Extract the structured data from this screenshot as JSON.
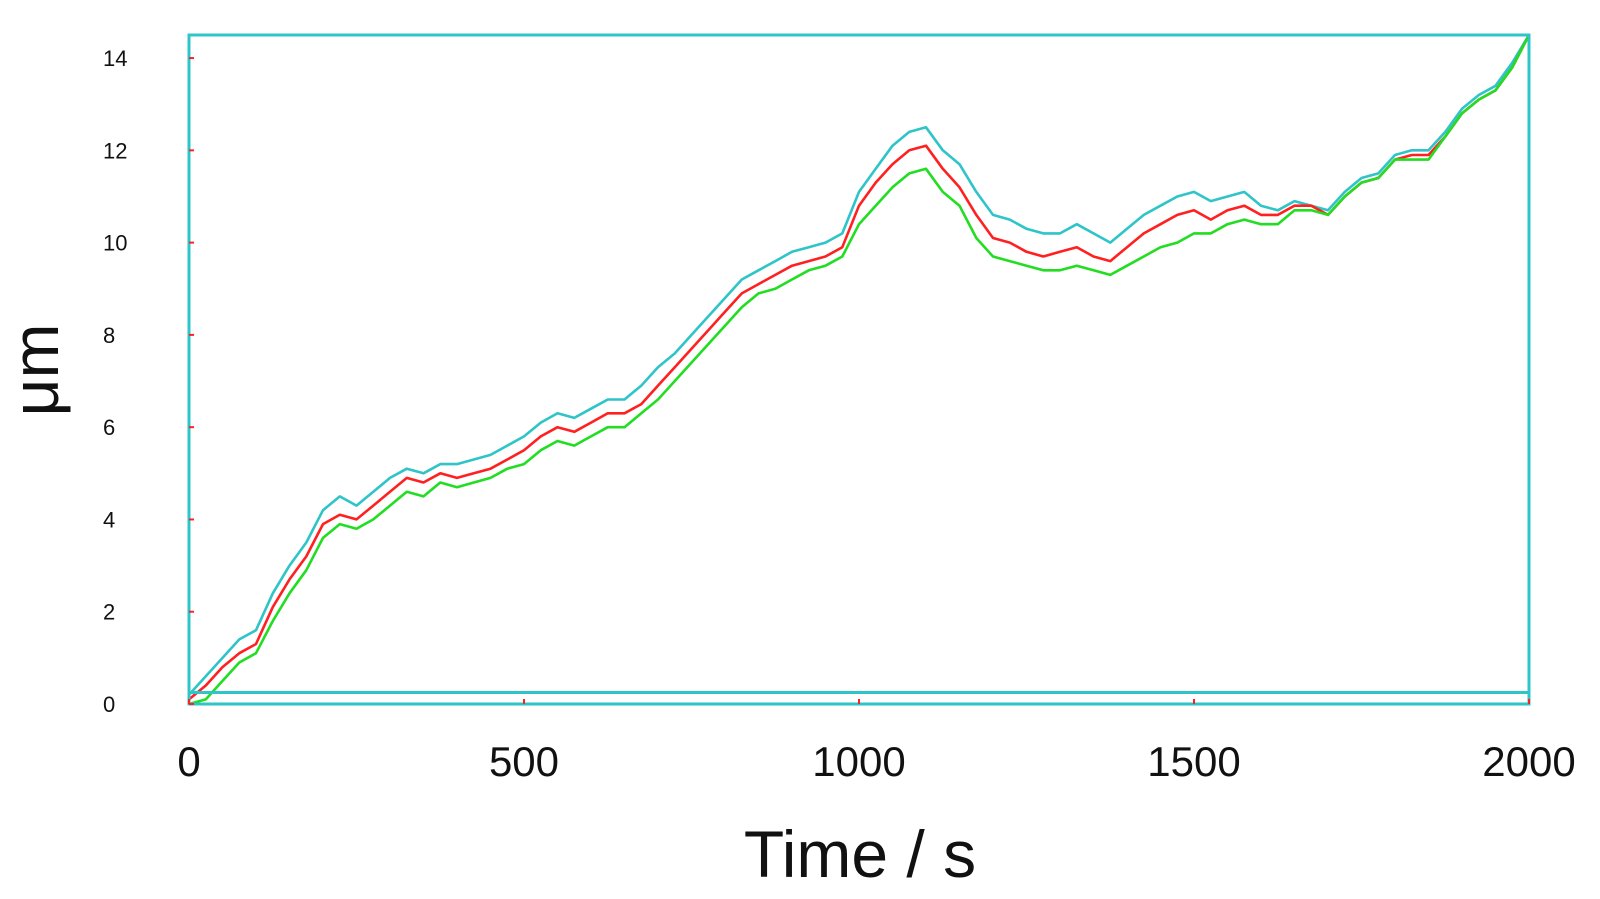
{
  "chart_data": {
    "type": "line",
    "title": "",
    "xlabel": "Time / s",
    "ylabel": "μm",
    "xlim": [
      0,
      2000
    ],
    "ylim": [
      0,
      14.5
    ],
    "xticks": [
      0,
      500,
      1000,
      1500,
      2000
    ],
    "xtick_labels": [
      "0",
      "500",
      "1000",
      "1500",
      "2000"
    ],
    "yticks": [
      0,
      2,
      4,
      6,
      8,
      10,
      12,
      14
    ],
    "ytick_labels": [
      "0",
      "2",
      "4",
      "6",
      "8",
      "10",
      "12",
      "14"
    ],
    "grid": false,
    "legend": "none",
    "frame_color": "#2ec4c8",
    "tick_color": "#ff2020",
    "baseline_y": 0.25,
    "x": [
      0,
      25,
      50,
      75,
      100,
      125,
      150,
      175,
      200,
      225,
      250,
      275,
      300,
      325,
      350,
      375,
      400,
      425,
      450,
      475,
      500,
      525,
      550,
      575,
      600,
      625,
      650,
      675,
      700,
      725,
      750,
      775,
      800,
      825,
      850,
      875,
      900,
      925,
      950,
      975,
      1000,
      1025,
      1050,
      1075,
      1100,
      1125,
      1150,
      1175,
      1200,
      1225,
      1250,
      1275,
      1300,
      1325,
      1350,
      1375,
      1400,
      1425,
      1450,
      1475,
      1500,
      1525,
      1550,
      1575,
      1600,
      1625,
      1650,
      1675,
      1700,
      1725,
      1750,
      1775,
      1800,
      1825,
      1850,
      1875,
      1900,
      1925,
      1950,
      1975,
      2000
    ],
    "series": [
      {
        "color": "#2ec4c8",
        "values": [
          0.2,
          0.6,
          1.0,
          1.4,
          1.6,
          2.4,
          3.0,
          3.5,
          4.2,
          4.5,
          4.3,
          4.6,
          4.9,
          5.1,
          5.0,
          5.2,
          5.2,
          5.3,
          5.4,
          5.6,
          5.8,
          6.1,
          6.3,
          6.2,
          6.4,
          6.6,
          6.6,
          6.9,
          7.3,
          7.6,
          8.0,
          8.4,
          8.8,
          9.2,
          9.4,
          9.6,
          9.8,
          9.9,
          10.0,
          10.2,
          11.1,
          11.6,
          12.1,
          12.4,
          12.5,
          12.0,
          11.7,
          11.1,
          10.6,
          10.5,
          10.3,
          10.2,
          10.2,
          10.4,
          10.2,
          10.0,
          10.3,
          10.6,
          10.8,
          11.0,
          11.1,
          10.9,
          11.0,
          11.1,
          10.8,
          10.7,
          10.9,
          10.8,
          10.7,
          11.1,
          11.4,
          11.5,
          11.9,
          12.0,
          12.0,
          12.4,
          12.9,
          13.2,
          13.4,
          13.9,
          14.5
        ]
      },
      {
        "color": "#ff2020",
        "values": [
          0.1,
          0.4,
          0.8,
          1.1,
          1.3,
          2.1,
          2.7,
          3.2,
          3.9,
          4.1,
          4.0,
          4.3,
          4.6,
          4.9,
          4.8,
          5.0,
          4.9,
          5.0,
          5.1,
          5.3,
          5.5,
          5.8,
          6.0,
          5.9,
          6.1,
          6.3,
          6.3,
          6.5,
          6.9,
          7.3,
          7.7,
          8.1,
          8.5,
          8.9,
          9.1,
          9.3,
          9.5,
          9.6,
          9.7,
          9.9,
          10.8,
          11.3,
          11.7,
          12.0,
          12.1,
          11.6,
          11.2,
          10.6,
          10.1,
          10.0,
          9.8,
          9.7,
          9.8,
          9.9,
          9.7,
          9.6,
          9.9,
          10.2,
          10.4,
          10.6,
          10.7,
          10.5,
          10.7,
          10.8,
          10.6,
          10.6,
          10.8,
          10.8,
          10.6,
          11.0,
          11.3,
          11.4,
          11.8,
          11.9,
          11.9,
          12.3,
          12.8,
          13.1,
          13.3,
          13.8,
          14.5
        ]
      },
      {
        "color": "#22dd22",
        "values": [
          0.0,
          0.1,
          0.5,
          0.9,
          1.1,
          1.8,
          2.4,
          2.9,
          3.6,
          3.9,
          3.8,
          4.0,
          4.3,
          4.6,
          4.5,
          4.8,
          4.7,
          4.8,
          4.9,
          5.1,
          5.2,
          5.5,
          5.7,
          5.6,
          5.8,
          6.0,
          6.0,
          6.3,
          6.6,
          7.0,
          7.4,
          7.8,
          8.2,
          8.6,
          8.9,
          9.0,
          9.2,
          9.4,
          9.5,
          9.7,
          10.4,
          10.8,
          11.2,
          11.5,
          11.6,
          11.1,
          10.8,
          10.1,
          9.7,
          9.6,
          9.5,
          9.4,
          9.4,
          9.5,
          9.4,
          9.3,
          9.5,
          9.7,
          9.9,
          10.0,
          10.2,
          10.2,
          10.4,
          10.5,
          10.4,
          10.4,
          10.7,
          10.7,
          10.6,
          11.0,
          11.3,
          11.4,
          11.8,
          11.8,
          11.8,
          12.3,
          12.8,
          13.1,
          13.3,
          13.8,
          14.5
        ]
      }
    ]
  }
}
